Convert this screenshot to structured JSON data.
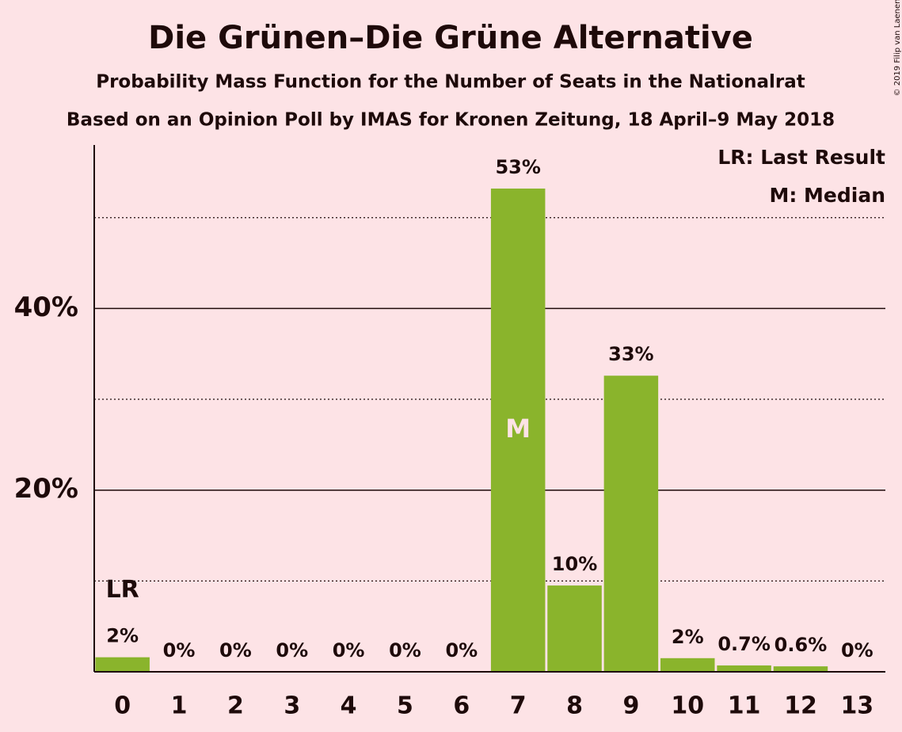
{
  "chart_data": {
    "type": "bar",
    "title": "Die Grünen–Die Grüne Alternative",
    "subtitle": "Probability Mass Function for the Number of Seats in the Nationalrat",
    "subtitle2": "Based on an Opinion Poll by IMAS for Kronen Zeitung, 18 April–9 May 2018",
    "copyright": "© 2019 Filip van Laenen",
    "categories": [
      "0",
      "1",
      "2",
      "3",
      "4",
      "5",
      "6",
      "7",
      "8",
      "9",
      "10",
      "11",
      "12",
      "13"
    ],
    "values": [
      1.6,
      0,
      0,
      0,
      0,
      0,
      0,
      53.2,
      9.5,
      32.6,
      1.5,
      0.7,
      0.6,
      0
    ],
    "value_labels": [
      "2%",
      "0%",
      "0%",
      "0%",
      "0%",
      "0%",
      "0%",
      "53%",
      "10%",
      "33%",
      "2%",
      "0.7%",
      "0.6%",
      "0%"
    ],
    "color": "#8ab42c",
    "ylim": [
      0,
      58
    ],
    "yticks": [
      {
        "value": 20,
        "label": "20%"
      },
      {
        "value": 40,
        "label": "40%"
      }
    ],
    "minor_yticks": [
      10,
      30,
      50
    ],
    "grid": true,
    "last_result": {
      "index": 0,
      "label": "LR"
    },
    "median": {
      "index": 7,
      "label": "M"
    },
    "legend": [
      "LR: Last Result",
      "M: Median"
    ],
    "legend_position": "top-right"
  }
}
